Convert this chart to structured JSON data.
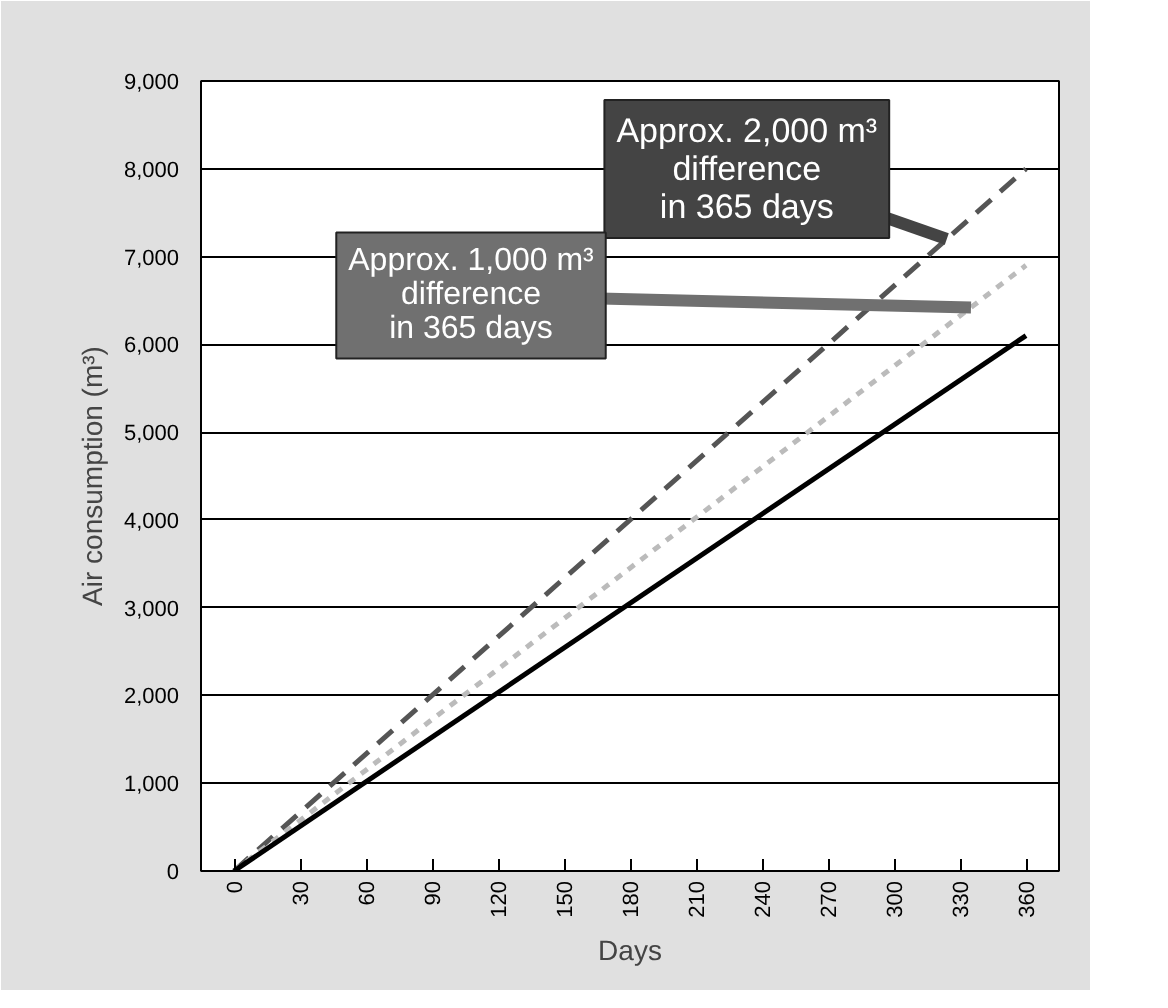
{
  "chart_data": {
    "type": "line",
    "xlabel": "Days",
    "ylabel": "Air consumption (m³)",
    "xlim": [
      -15,
      375
    ],
    "ylim": [
      0,
      9000
    ],
    "xticks": [
      0,
      30,
      60,
      90,
      120,
      150,
      180,
      210,
      240,
      270,
      300,
      330,
      360
    ],
    "yticks": [
      0,
      {
        "value": 1000,
        "label": "1,000"
      },
      {
        "value": 2000,
        "label": "2,000"
      },
      {
        "value": 3000,
        "label": "3,000"
      },
      {
        "value": 4000,
        "label": "4,000"
      },
      {
        "value": 5000,
        "label": "5,000"
      },
      {
        "value": 6000,
        "label": "6,000"
      },
      {
        "value": 7000,
        "label": "7,000"
      },
      {
        "value": 8000,
        "label": "8,000"
      },
      {
        "value": 9000,
        "label": "9,000"
      }
    ],
    "grid": "y",
    "x": [
      0,
      360
    ],
    "series": [
      {
        "color": "#555555",
        "line_style": "dashed",
        "values": [
          0,
          8000
        ]
      },
      {
        "color": "#bbbbbb",
        "line_style": "dotted",
        "values": [
          0,
          6900
        ]
      },
      {
        "color": "#000000",
        "line_style": "solid",
        "values": [
          0,
          6100
        ]
      }
    ],
    "annotations": [
      {
        "text": "Approx. 2,000 m³\ndifference\nin 365 days",
        "x": 324,
        "y": 7200
      },
      {
        "text": "Approx. 1,000 m³\ndifference\nin 365 days",
        "x": 335,
        "y": 6420
      }
    ]
  }
}
